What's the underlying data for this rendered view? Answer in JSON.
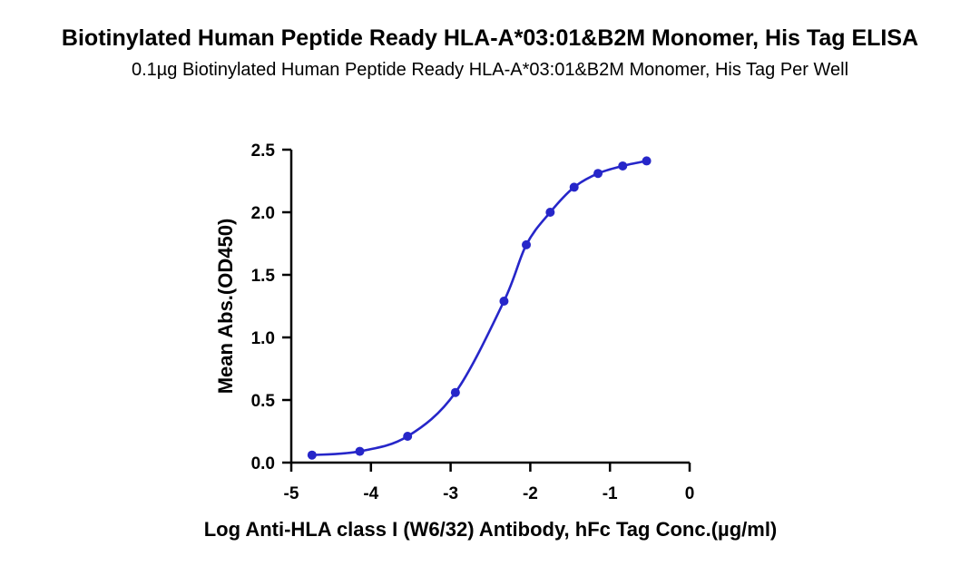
{
  "header": {
    "title": "Biotinylated Human Peptide Ready HLA-A*03:01&B2M Monomer, His Tag ELISA",
    "subtitle": "0.1µg Biotinylated Human Peptide Ready HLA-A*03:01&B2M Monomer, His Tag Per Well"
  },
  "chart_data": {
    "type": "line",
    "title": "Biotinylated Human Peptide Ready HLA-A*03:01&B2M Monomer, His Tag ELISA",
    "subtitle": "0.1µg Biotinylated Human Peptide Ready HLA-A*03:01&B2M Monomer, His Tag Per Well",
    "xlabel": "Log Anti-HLA class I (W6/32) Antibody, hFc Tag Conc.(µg/ml)",
    "ylabel": "Mean Abs.(OD450)",
    "xlim": [
      -5,
      0
    ],
    "ylim": [
      0,
      2.5
    ],
    "xticks": [
      "-5",
      "-4",
      "-3",
      "-2",
      "-1",
      "0"
    ],
    "yticks": [
      "0.0",
      "0.5",
      "1.0",
      "1.5",
      "2.0",
      "2.5"
    ],
    "grid": false,
    "color": "#2626c9",
    "series": [
      {
        "x": [
          -4.74,
          -4.14,
          -3.54,
          -2.94,
          -2.33,
          -2.05,
          -1.75,
          -1.45,
          -1.15,
          -0.84,
          -0.54
        ],
        "y": [
          0.06,
          0.09,
          0.21,
          0.56,
          1.29,
          1.74,
          2.0,
          2.2,
          2.31,
          2.37,
          2.41
        ]
      }
    ]
  }
}
